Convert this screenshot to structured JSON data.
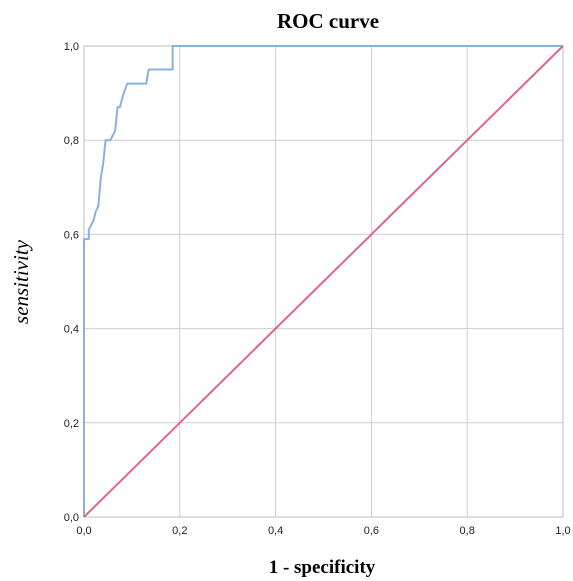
{
  "chart_data": {
    "type": "line",
    "title": "ROC curve",
    "xlabel": "1 - specificity",
    "ylabel": "sensitivity",
    "xlim": [
      0,
      1
    ],
    "ylim": [
      0,
      1
    ],
    "x_ticks": [
      "0,0",
      "0,2",
      "0,4",
      "0,6",
      "0,8",
      "1,0"
    ],
    "y_ticks": [
      "0,0",
      "0,2",
      "0,4",
      "0,6",
      "0,8",
      "1,0"
    ],
    "grid": true,
    "series": [
      {
        "color": "#8ab0df",
        "points": [
          [
            0.0,
            0.0
          ],
          [
            0.0,
            0.59
          ],
          [
            0.01,
            0.59
          ],
          [
            0.01,
            0.61
          ],
          [
            0.02,
            0.63
          ],
          [
            0.025,
            0.65
          ],
          [
            0.03,
            0.66
          ],
          [
            0.035,
            0.72
          ],
          [
            0.04,
            0.75
          ],
          [
            0.045,
            0.8
          ],
          [
            0.055,
            0.8
          ],
          [
            0.065,
            0.82
          ],
          [
            0.07,
            0.87
          ],
          [
            0.075,
            0.87
          ],
          [
            0.08,
            0.89
          ],
          [
            0.09,
            0.92
          ],
          [
            0.13,
            0.92
          ],
          [
            0.135,
            0.95
          ],
          [
            0.185,
            0.95
          ],
          [
            0.185,
            1.0
          ],
          [
            1.0,
            1.0
          ]
        ]
      },
      {
        "color": "#e0668c",
        "points": [
          [
            0.0,
            0.0
          ],
          [
            1.0,
            1.0
          ]
        ]
      }
    ]
  }
}
